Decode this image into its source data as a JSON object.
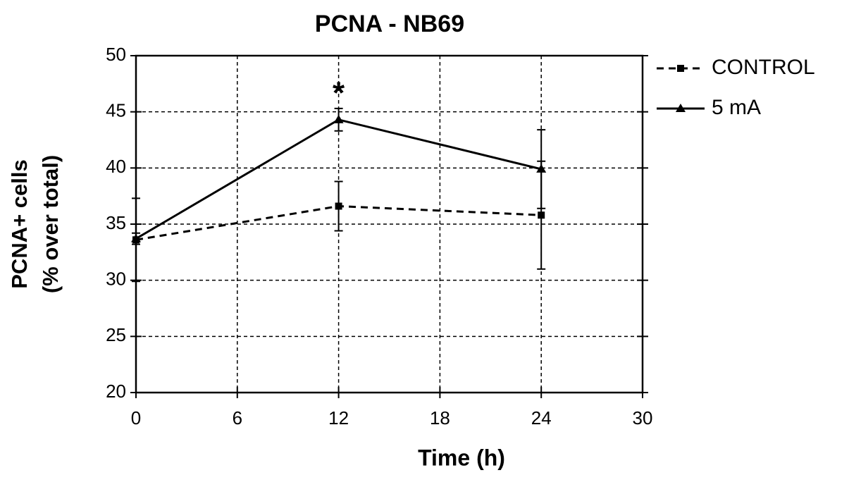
{
  "chart_data": {
    "type": "line",
    "title": "PCNA - NB69",
    "x_label": "Time (h)",
    "y_label": [
      "PCNA+ cells",
      "(% over total)"
    ],
    "x": [
      0,
      12,
      24
    ],
    "series": [
      {
        "name": "CONTROL",
        "color": "#000000",
        "line_style": "dashed",
        "marker": "square",
        "values": [
          33.6,
          36.6,
          35.8
        ],
        "errors": [
          3.7,
          2.2,
          4.8
        ]
      },
      {
        "name": "5 mA",
        "color": "#000000",
        "line_style": "solid",
        "marker": "triangle",
        "values": [
          33.7,
          44.3,
          39.9
        ],
        "errors": [
          0.5,
          1,
          3.5
        ]
      }
    ],
    "annotations": [
      {
        "text": "*",
        "x": 12,
        "y": 47
      }
    ],
    "xlim": [
      0,
      30
    ],
    "xticks": [
      0,
      6,
      12,
      18,
      24,
      30
    ],
    "ylim": [
      20,
      50
    ],
    "yticks": [
      20,
      25,
      30,
      35,
      40,
      45,
      50
    ],
    "grid": true,
    "legend": "outside-right"
  }
}
